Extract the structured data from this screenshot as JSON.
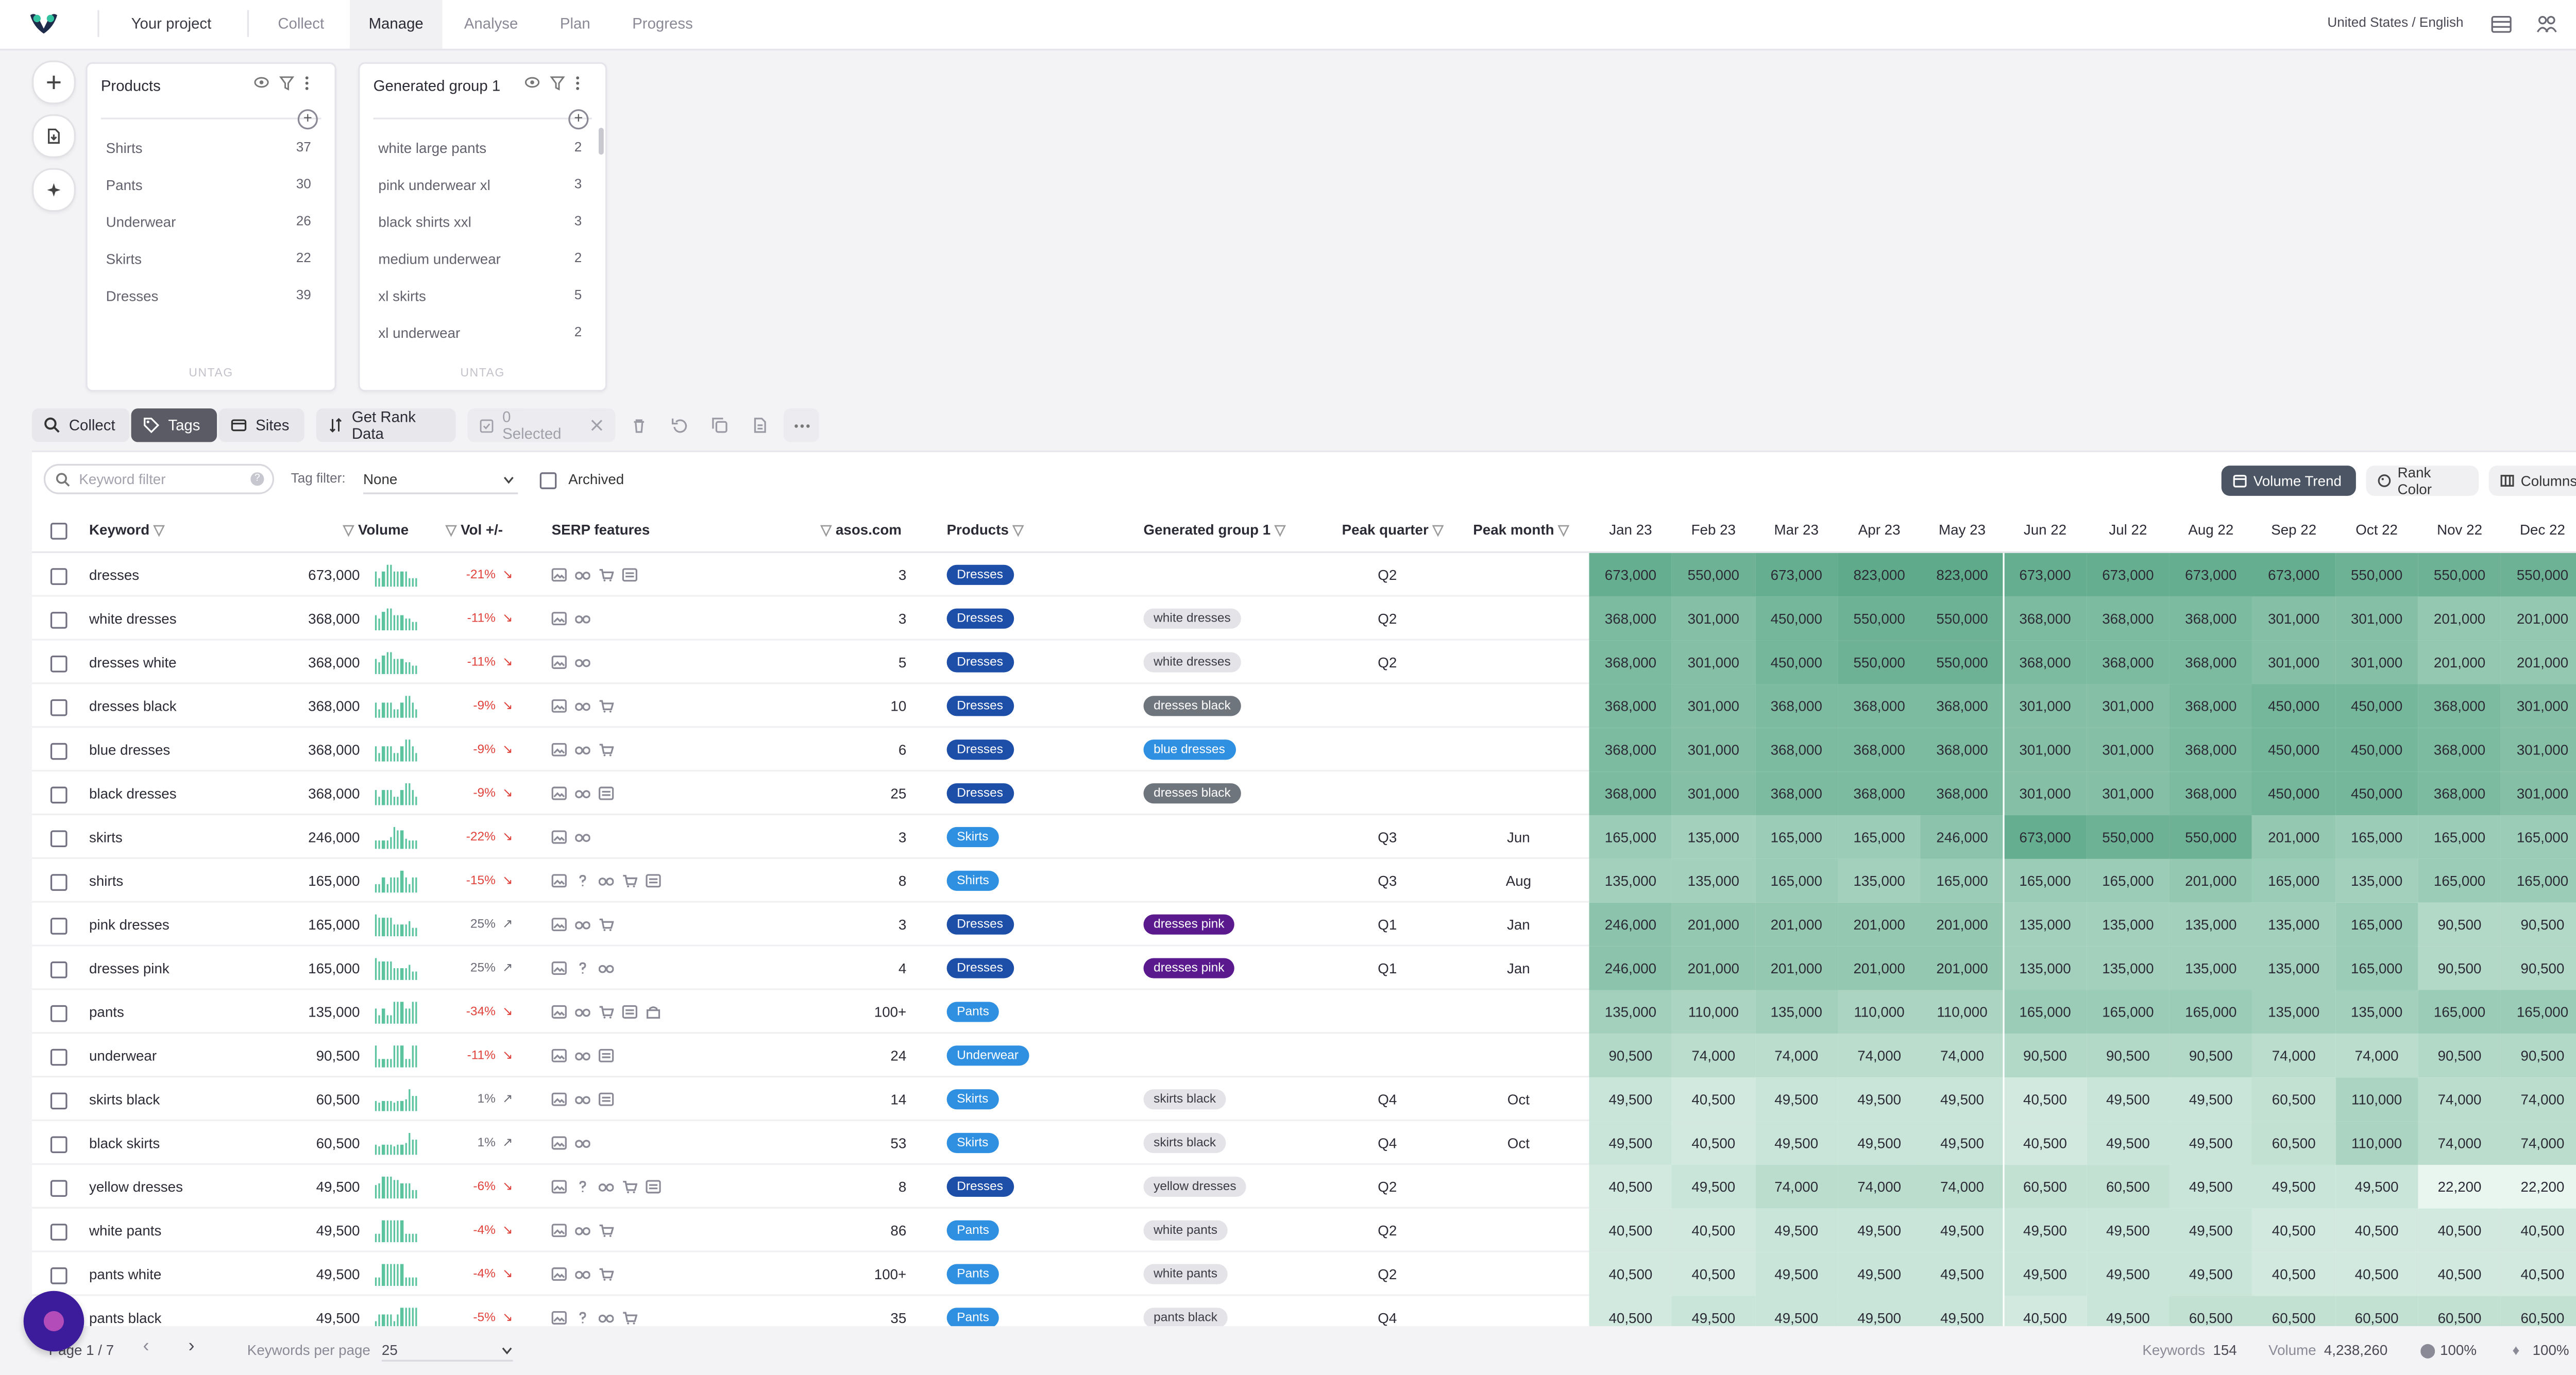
{
  "nav": {
    "project": "Your project",
    "tabs": [
      "Collect",
      "Manage",
      "Analyse",
      "Plan",
      "Progress"
    ],
    "active_tab": "Manage",
    "locale": "United States / English"
  },
  "groups": [
    {
      "title": "Products",
      "items": [
        {
          "label": "Shirts",
          "count": "37"
        },
        {
          "label": "Pants",
          "count": "30"
        },
        {
          "label": "Underwear",
          "count": "26"
        },
        {
          "label": "Skirts",
          "count": "22"
        },
        {
          "label": "Dresses",
          "count": "39"
        }
      ],
      "untag": "UNTAG"
    },
    {
      "title": "Generated group 1",
      "items": [
        {
          "label": "white large pants",
          "count": "2"
        },
        {
          "label": "pink underwear xl",
          "count": "3"
        },
        {
          "label": "black shirts xxl",
          "count": "3"
        },
        {
          "label": "medium underwear",
          "count": "2"
        },
        {
          "label": "xl skirts",
          "count": "5"
        },
        {
          "label": "xl underwear",
          "count": "2"
        }
      ],
      "untag": "UNTAG"
    }
  ],
  "toolbar": {
    "collect": "Collect",
    "tags": "Tags",
    "sites": "Sites",
    "get_rank": "Get Rank Data",
    "selected": "0 Selected"
  },
  "filters": {
    "keyword_placeholder": "Keyword filter",
    "tag_filter_label": "Tag filter:",
    "tag_filter_value": "None",
    "archived_label": "Archived",
    "volume_trend": "Volume Trend",
    "rank_color": "Rank Color",
    "columns": "Columns"
  },
  "headers": {
    "keyword": "Keyword",
    "volume": "Volume",
    "vol_change": "Vol +/-",
    "serp": "SERP features",
    "site": "asos.com",
    "products": "Products",
    "group1": "Generated group 1",
    "peak_quarter": "Peak quarter",
    "peak_month": "Peak month",
    "months": [
      "Jan 23",
      "Feb 23",
      "Mar 23",
      "Apr 23",
      "May 23",
      "Jun 22",
      "Jul 22",
      "Aug 22",
      "Sep 22",
      "Oct 22",
      "Nov 22",
      "Dec 22"
    ]
  },
  "colors": {
    "badge_dresses": "#1e4fa8",
    "badge_skirts": "#2f8fe0",
    "badge_shirts": "#2f8fe0",
    "badge_pants": "#2f8fe0",
    "badge_underwear": "#2f8fe0",
    "tag_blue": "#2f8fe0",
    "tag_gray": "#6f757d",
    "tag_purple": "#5a1a8e",
    "tag_light": "#e4e4e8",
    "negative": "#e0413a",
    "spark": "#5bc49f"
  },
  "rows": [
    {
      "keyword": "dresses",
      "volume": "673,000",
      "vol": "-21%",
      "dir": "down",
      "serp": [
        "img",
        "glasses",
        "cart",
        "news"
      ],
      "site": "3",
      "product": "Dresses",
      "pcolor": "badge_dresses",
      "group": "",
      "gstyle": "",
      "pq": "Q2",
      "pm": "",
      "months": [
        "673,000",
        "550,000",
        "673,000",
        "823,000",
        "823,000",
        "673,000",
        "673,000",
        "673,000",
        "673,000",
        "550,000",
        "550,000",
        "550,000"
      ]
    },
    {
      "keyword": "white dresses",
      "volume": "368,000",
      "vol": "-11%",
      "dir": "down",
      "serp": [
        "img",
        "glasses"
      ],
      "site": "3",
      "product": "Dresses",
      "pcolor": "badge_dresses",
      "group": "white dresses",
      "gstyle": "tag_light",
      "pq": "Q2",
      "pm": "",
      "months": [
        "368,000",
        "301,000",
        "450,000",
        "550,000",
        "550,000",
        "368,000",
        "368,000",
        "368,000",
        "301,000",
        "301,000",
        "201,000",
        "201,000"
      ]
    },
    {
      "keyword": "dresses white",
      "volume": "368,000",
      "vol": "-11%",
      "dir": "down",
      "serp": [
        "img",
        "glasses"
      ],
      "site": "5",
      "product": "Dresses",
      "pcolor": "badge_dresses",
      "group": "white dresses",
      "gstyle": "tag_light",
      "pq": "Q2",
      "pm": "",
      "months": [
        "368,000",
        "301,000",
        "450,000",
        "550,000",
        "550,000",
        "368,000",
        "368,000",
        "368,000",
        "301,000",
        "301,000",
        "201,000",
        "201,000"
      ]
    },
    {
      "keyword": "dresses black",
      "volume": "368,000",
      "vol": "-9%",
      "dir": "down",
      "serp": [
        "img",
        "glasses",
        "cart"
      ],
      "site": "10",
      "product": "Dresses",
      "pcolor": "badge_dresses",
      "group": "dresses black",
      "gstyle": "tag_gray",
      "pq": "",
      "pm": "",
      "months": [
        "368,000",
        "301,000",
        "368,000",
        "368,000",
        "368,000",
        "301,000",
        "301,000",
        "368,000",
        "450,000",
        "450,000",
        "368,000",
        "301,000"
      ]
    },
    {
      "keyword": "blue dresses",
      "volume": "368,000",
      "vol": "-9%",
      "dir": "down",
      "serp": [
        "img",
        "glasses",
        "cart"
      ],
      "site": "6",
      "product": "Dresses",
      "pcolor": "badge_dresses",
      "group": "blue dresses",
      "gstyle": "tag_blue",
      "pq": "",
      "pm": "",
      "months": [
        "368,000",
        "301,000",
        "368,000",
        "368,000",
        "368,000",
        "301,000",
        "301,000",
        "368,000",
        "450,000",
        "450,000",
        "368,000",
        "301,000"
      ]
    },
    {
      "keyword": "black dresses",
      "volume": "368,000",
      "vol": "-9%",
      "dir": "down",
      "serp": [
        "img",
        "glasses",
        "news"
      ],
      "site": "25",
      "product": "Dresses",
      "pcolor": "badge_dresses",
      "group": "dresses black",
      "gstyle": "tag_gray",
      "pq": "",
      "pm": "",
      "months": [
        "368,000",
        "301,000",
        "368,000",
        "368,000",
        "368,000",
        "301,000",
        "301,000",
        "368,000",
        "450,000",
        "450,000",
        "368,000",
        "301,000"
      ]
    },
    {
      "keyword": "skirts",
      "volume": "246,000",
      "vol": "-22%",
      "dir": "down",
      "serp": [
        "img",
        "glasses"
      ],
      "site": "3",
      "product": "Skirts",
      "pcolor": "badge_skirts",
      "group": "",
      "gstyle": "",
      "pq": "Q3",
      "pm": "Jun",
      "months": [
        "165,000",
        "135,000",
        "165,000",
        "165,000",
        "246,000",
        "673,000",
        "550,000",
        "550,000",
        "201,000",
        "165,000",
        "165,000",
        "165,000"
      ]
    },
    {
      "keyword": "shirts",
      "volume": "165,000",
      "vol": "-15%",
      "dir": "down",
      "serp": [
        "img",
        "question",
        "glasses",
        "cart",
        "news"
      ],
      "site": "8",
      "product": "Shirts",
      "pcolor": "badge_shirts",
      "group": "",
      "gstyle": "",
      "pq": "Q3",
      "pm": "Aug",
      "months": [
        "135,000",
        "135,000",
        "165,000",
        "135,000",
        "165,000",
        "165,000",
        "165,000",
        "201,000",
        "165,000",
        "135,000",
        "165,000",
        "165,000"
      ]
    },
    {
      "keyword": "pink dresses",
      "volume": "165,000",
      "vol": "25%",
      "dir": "up",
      "serp": [
        "img",
        "glasses",
        "cart"
      ],
      "site": "3",
      "product": "Dresses",
      "pcolor": "badge_dresses",
      "group": "dresses pink",
      "gstyle": "tag_purple",
      "pq": "Q1",
      "pm": "Jan",
      "months": [
        "246,000",
        "201,000",
        "201,000",
        "201,000",
        "201,000",
        "135,000",
        "135,000",
        "135,000",
        "135,000",
        "165,000",
        "90,500",
        "90,500"
      ]
    },
    {
      "keyword": "dresses pink",
      "volume": "165,000",
      "vol": "25%",
      "dir": "up",
      "serp": [
        "img",
        "question",
        "glasses"
      ],
      "site": "4",
      "product": "Dresses",
      "pcolor": "badge_dresses",
      "group": "dresses pink",
      "gstyle": "tag_purple",
      "pq": "Q1",
      "pm": "Jan",
      "months": [
        "246,000",
        "201,000",
        "201,000",
        "201,000",
        "201,000",
        "135,000",
        "135,000",
        "135,000",
        "135,000",
        "165,000",
        "90,500",
        "90,500"
      ]
    },
    {
      "keyword": "pants",
      "volume": "135,000",
      "vol": "-34%",
      "dir": "down",
      "serp": [
        "img",
        "glasses",
        "cart",
        "news",
        "shop"
      ],
      "site": "100+",
      "product": "Pants",
      "pcolor": "badge_pants",
      "group": "",
      "gstyle": "",
      "pq": "",
      "pm": "",
      "months": [
        "135,000",
        "110,000",
        "135,000",
        "110,000",
        "110,000",
        "165,000",
        "165,000",
        "165,000",
        "135,000",
        "135,000",
        "165,000",
        "165,000"
      ]
    },
    {
      "keyword": "underwear",
      "volume": "90,500",
      "vol": "-11%",
      "dir": "down",
      "serp": [
        "img",
        "glasses",
        "news"
      ],
      "site": "24",
      "product": "Underwear",
      "pcolor": "badge_underwear",
      "group": "",
      "gstyle": "",
      "pq": "",
      "pm": "",
      "months": [
        "90,500",
        "74,000",
        "74,000",
        "74,000",
        "74,000",
        "90,500",
        "90,500",
        "90,500",
        "74,000",
        "74,000",
        "90,500",
        "90,500"
      ]
    },
    {
      "keyword": "skirts black",
      "volume": "60,500",
      "vol": "1%",
      "dir": "up",
      "serp": [
        "img",
        "glasses",
        "news"
      ],
      "site": "14",
      "product": "Skirts",
      "pcolor": "badge_skirts",
      "group": "skirts black",
      "gstyle": "tag_light",
      "pq": "Q4",
      "pm": "Oct",
      "months": [
        "49,500",
        "40,500",
        "49,500",
        "49,500",
        "49,500",
        "40,500",
        "49,500",
        "49,500",
        "60,500",
        "110,000",
        "74,000",
        "74,000"
      ]
    },
    {
      "keyword": "black skirts",
      "volume": "60,500",
      "vol": "1%",
      "dir": "up",
      "serp": [
        "img",
        "glasses"
      ],
      "site": "53",
      "product": "Skirts",
      "pcolor": "badge_skirts",
      "group": "skirts black",
      "gstyle": "tag_light",
      "pq": "Q4",
      "pm": "Oct",
      "months": [
        "49,500",
        "40,500",
        "49,500",
        "49,500",
        "49,500",
        "40,500",
        "49,500",
        "49,500",
        "60,500",
        "110,000",
        "74,000",
        "74,000"
      ]
    },
    {
      "keyword": "yellow dresses",
      "volume": "49,500",
      "vol": "-6%",
      "dir": "down",
      "serp": [
        "img",
        "question",
        "glasses",
        "cart",
        "news"
      ],
      "site": "8",
      "product": "Dresses",
      "pcolor": "badge_dresses",
      "group": "yellow dresses",
      "gstyle": "tag_light",
      "pq": "Q2",
      "pm": "",
      "months": [
        "40,500",
        "49,500",
        "74,000",
        "74,000",
        "74,000",
        "60,500",
        "60,500",
        "49,500",
        "49,500",
        "49,500",
        "22,200",
        "22,200"
      ]
    },
    {
      "keyword": "white pants",
      "volume": "49,500",
      "vol": "-4%",
      "dir": "down",
      "serp": [
        "img",
        "glasses",
        "cart"
      ],
      "site": "86",
      "product": "Pants",
      "pcolor": "badge_pants",
      "group": "white pants",
      "gstyle": "tag_light",
      "pq": "Q2",
      "pm": "",
      "months": [
        "40,500",
        "40,500",
        "49,500",
        "49,500",
        "49,500",
        "49,500",
        "49,500",
        "49,500",
        "40,500",
        "40,500",
        "40,500",
        "40,500"
      ]
    },
    {
      "keyword": "pants white",
      "volume": "49,500",
      "vol": "-4%",
      "dir": "down",
      "serp": [
        "img",
        "glasses",
        "cart"
      ],
      "site": "100+",
      "product": "Pants",
      "pcolor": "badge_pants",
      "group": "white pants",
      "gstyle": "tag_light",
      "pq": "Q2",
      "pm": "",
      "months": [
        "40,500",
        "40,500",
        "49,500",
        "49,500",
        "49,500",
        "49,500",
        "49,500",
        "49,500",
        "40,500",
        "40,500",
        "40,500",
        "40,500"
      ]
    },
    {
      "keyword": "pants black",
      "volume": "49,500",
      "vol": "-5%",
      "dir": "down",
      "serp": [
        "img",
        "question",
        "glasses",
        "cart"
      ],
      "site": "35",
      "product": "Pants",
      "pcolor": "badge_pants",
      "group": "pants black",
      "gstyle": "tag_light",
      "pq": "Q4",
      "pm": "",
      "months": [
        "40,500",
        "49,500",
        "49,500",
        "49,500",
        "49,500",
        "40,500",
        "49,500",
        "60,500",
        "60,500",
        "60,500",
        "60,500",
        "60,500"
      ]
    }
  ],
  "footer": {
    "page": "Page 1 / 7",
    "per_page_label": "Keywords per page",
    "per_page_value": "25",
    "keywords_label": "Keywords",
    "keywords_value": "154",
    "volume_label": "Volume",
    "volume_value": "4,238,260",
    "pct1": "100%",
    "pct2": "100%"
  }
}
